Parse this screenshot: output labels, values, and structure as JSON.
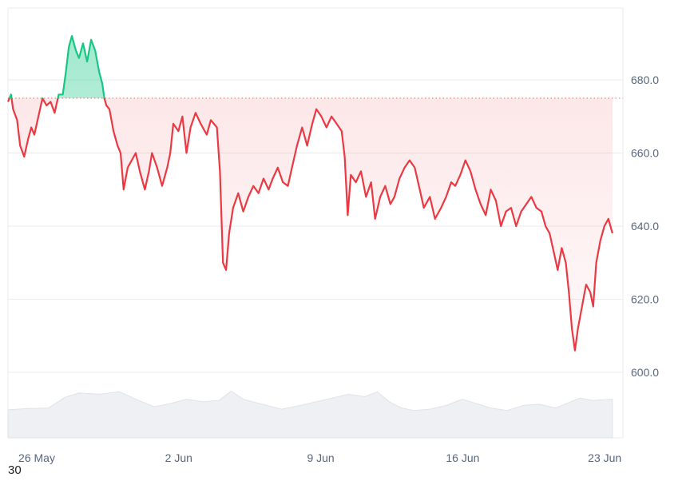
{
  "corner_text": "30",
  "colors": {
    "up_line": "#16c784",
    "down_line": "#ea3943",
    "up_fill": "#16c784",
    "down_fill": "#ea3943",
    "baseline": "#ea3943",
    "volume_fill": "#eef0f3",
    "grid": "#e9ebee",
    "axis_text": "#58667e"
  },
  "chart_data": {
    "type": "line",
    "title": "",
    "xlabel": "",
    "ylabel": "",
    "ylim": [
      595,
      700
    ],
    "y_ticks": [
      600,
      620,
      640,
      660,
      680
    ],
    "y_tick_labels": [
      "600.0",
      "620.0",
      "640.0",
      "660.0",
      "680.0"
    ],
    "x_ticks": [
      {
        "day": 0,
        "label": "26 May"
      },
      {
        "day": 7,
        "label": "2 Jun"
      },
      {
        "day": 14,
        "label": "9 Jun"
      },
      {
        "day": 21,
        "label": "16 Jun"
      },
      {
        "day": 28,
        "label": "23 Jun"
      }
    ],
    "baseline_value": 675,
    "grid": true,
    "series": [
      {
        "points": [
          [
            0.0,
            674
          ],
          [
            0.15,
            676
          ],
          [
            0.25,
            672
          ],
          [
            0.45,
            669
          ],
          [
            0.6,
            662
          ],
          [
            0.8,
            659
          ],
          [
            1.0,
            664
          ],
          [
            1.15,
            667
          ],
          [
            1.3,
            665
          ],
          [
            1.5,
            670
          ],
          [
            1.7,
            675
          ],
          [
            1.9,
            673
          ],
          [
            2.1,
            674
          ],
          [
            2.3,
            671
          ],
          [
            2.5,
            676
          ],
          [
            2.7,
            676
          ],
          [
            2.85,
            682
          ],
          [
            3.0,
            689
          ],
          [
            3.15,
            692
          ],
          [
            3.35,
            688
          ],
          [
            3.5,
            686
          ],
          [
            3.7,
            690
          ],
          [
            3.9,
            685
          ],
          [
            4.1,
            691
          ],
          [
            4.3,
            688
          ],
          [
            4.5,
            682
          ],
          [
            4.65,
            679
          ],
          [
            4.75,
            675
          ],
          [
            4.85,
            673
          ],
          [
            5.0,
            672
          ],
          [
            5.2,
            666
          ],
          [
            5.4,
            662
          ],
          [
            5.55,
            660
          ],
          [
            5.7,
            650
          ],
          [
            5.9,
            656
          ],
          [
            6.1,
            658
          ],
          [
            6.3,
            660
          ],
          [
            6.5,
            655
          ],
          [
            6.75,
            650
          ],
          [
            6.95,
            655
          ],
          [
            7.1,
            660
          ],
          [
            7.35,
            656
          ],
          [
            7.6,
            651
          ],
          [
            7.85,
            656
          ],
          [
            8.0,
            660
          ],
          [
            8.15,
            668
          ],
          [
            8.4,
            666
          ],
          [
            8.6,
            670
          ],
          [
            8.8,
            660
          ],
          [
            9.0,
            667
          ],
          [
            9.25,
            671
          ],
          [
            9.5,
            668
          ],
          [
            9.8,
            665
          ],
          [
            10.0,
            669
          ],
          [
            10.3,
            667
          ],
          [
            10.45,
            655
          ],
          [
            10.6,
            630
          ],
          [
            10.75,
            628
          ],
          [
            10.9,
            638
          ],
          [
            11.1,
            645
          ],
          [
            11.35,
            649
          ],
          [
            11.6,
            644
          ],
          [
            11.85,
            648
          ],
          [
            12.1,
            651
          ],
          [
            12.35,
            649
          ],
          [
            12.6,
            653
          ],
          [
            12.85,
            650
          ],
          [
            13.05,
            653
          ],
          [
            13.3,
            656
          ],
          [
            13.55,
            652
          ],
          [
            13.8,
            651
          ],
          [
            14.0,
            656
          ],
          [
            14.25,
            662
          ],
          [
            14.5,
            667
          ],
          [
            14.75,
            662
          ],
          [
            15.0,
            668
          ],
          [
            15.2,
            672
          ],
          [
            15.45,
            670
          ],
          [
            15.7,
            667
          ],
          [
            15.95,
            670
          ],
          [
            16.2,
            668
          ],
          [
            16.45,
            666
          ],
          [
            16.6,
            659
          ],
          [
            16.75,
            643
          ],
          [
            16.9,
            654
          ],
          [
            17.15,
            652
          ],
          [
            17.4,
            655
          ],
          [
            17.65,
            648
          ],
          [
            17.9,
            652
          ],
          [
            18.1,
            642
          ],
          [
            18.35,
            648
          ],
          [
            18.6,
            651
          ],
          [
            18.85,
            646
          ],
          [
            19.05,
            648
          ],
          [
            19.3,
            653
          ],
          [
            19.55,
            656
          ],
          [
            19.8,
            658
          ],
          [
            20.05,
            656
          ],
          [
            20.3,
            650
          ],
          [
            20.5,
            645
          ],
          [
            20.8,
            648
          ],
          [
            21.05,
            642
          ],
          [
            21.35,
            645
          ],
          [
            21.6,
            648
          ],
          [
            21.85,
            652
          ],
          [
            22.05,
            651
          ],
          [
            22.3,
            654
          ],
          [
            22.55,
            658
          ],
          [
            22.8,
            655
          ],
          [
            23.05,
            650
          ],
          [
            23.3,
            646
          ],
          [
            23.55,
            643
          ],
          [
            23.8,
            650
          ],
          [
            24.05,
            647
          ],
          [
            24.3,
            640
          ],
          [
            24.55,
            644
          ],
          [
            24.8,
            645
          ],
          [
            25.05,
            640
          ],
          [
            25.3,
            644
          ],
          [
            25.55,
            646
          ],
          [
            25.8,
            648
          ],
          [
            26.05,
            645
          ],
          [
            26.3,
            644
          ],
          [
            26.5,
            640
          ],
          [
            26.7,
            638
          ],
          [
            26.9,
            633
          ],
          [
            27.1,
            628
          ],
          [
            27.3,
            634
          ],
          [
            27.5,
            630
          ],
          [
            27.65,
            622
          ],
          [
            27.8,
            612
          ],
          [
            27.95,
            606
          ],
          [
            28.1,
            612
          ],
          [
            28.3,
            618
          ],
          [
            28.5,
            624
          ],
          [
            28.7,
            622
          ],
          [
            28.85,
            618
          ],
          [
            29.0,
            630
          ],
          [
            29.2,
            636
          ],
          [
            29.4,
            640
          ],
          [
            29.6,
            642
          ],
          [
            29.8,
            638
          ]
        ]
      }
    ],
    "volume": {
      "points": [
        [
          0.0,
          0.45
        ],
        [
          1.0,
          0.47
        ],
        [
          2.0,
          0.48
        ],
        [
          2.8,
          0.65
        ],
        [
          3.5,
          0.72
        ],
        [
          4.5,
          0.7
        ],
        [
          5.5,
          0.74
        ],
        [
          6.3,
          0.62
        ],
        [
          7.2,
          0.5
        ],
        [
          8.0,
          0.55
        ],
        [
          8.8,
          0.62
        ],
        [
          9.6,
          0.58
        ],
        [
          10.4,
          0.6
        ],
        [
          11.0,
          0.75
        ],
        [
          11.6,
          0.62
        ],
        [
          12.4,
          0.55
        ],
        [
          13.5,
          0.46
        ],
        [
          14.4,
          0.52
        ],
        [
          15.2,
          0.58
        ],
        [
          16.0,
          0.64
        ],
        [
          16.8,
          0.7
        ],
        [
          17.6,
          0.66
        ],
        [
          18.2,
          0.74
        ],
        [
          18.8,
          0.58
        ],
        [
          19.4,
          0.48
        ],
        [
          20.0,
          0.44
        ],
        [
          20.8,
          0.46
        ],
        [
          21.6,
          0.52
        ],
        [
          22.4,
          0.62
        ],
        [
          23.0,
          0.56
        ],
        [
          23.8,
          0.48
        ],
        [
          24.6,
          0.44
        ],
        [
          25.4,
          0.52
        ],
        [
          26.2,
          0.54
        ],
        [
          27.0,
          0.48
        ],
        [
          27.6,
          0.56
        ],
        [
          28.2,
          0.64
        ],
        [
          28.8,
          0.6
        ],
        [
          29.8,
          0.62
        ]
      ]
    }
  }
}
